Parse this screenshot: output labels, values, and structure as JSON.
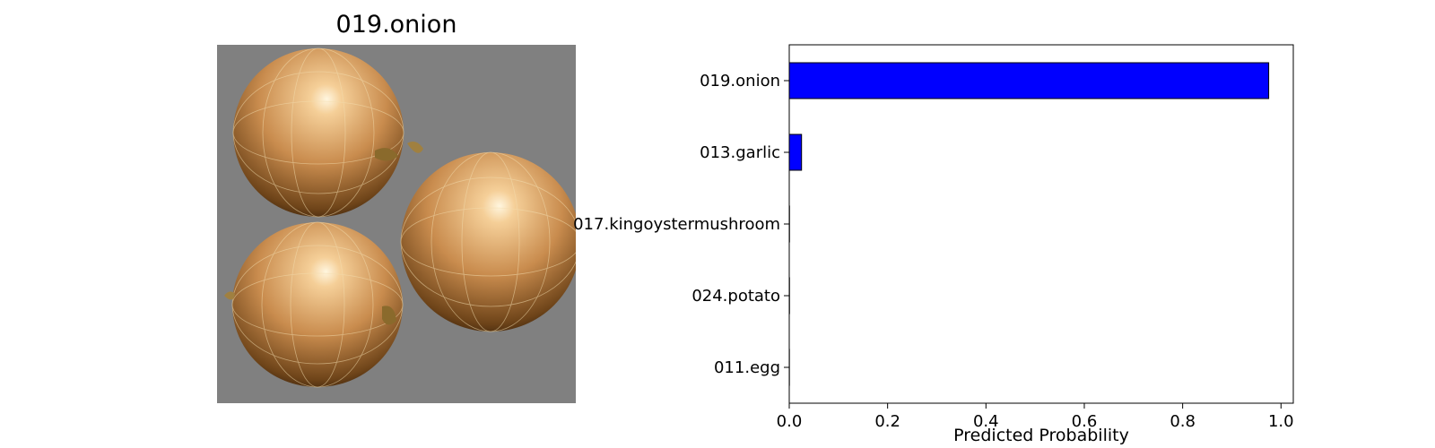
{
  "image_panel": {
    "title": "019.onion",
    "background_color": "#808080",
    "subject": "three onions"
  },
  "chart_data": {
    "type": "bar",
    "orientation": "horizontal",
    "categories": [
      "019.onion",
      "013.garlic",
      "017.kingoystermushroom",
      "024.potato",
      "011.egg"
    ],
    "values": [
      0.975,
      0.025,
      0.0005,
      0.0005,
      0.0003
    ],
    "xlabel": "Predicted Probability",
    "ylabel": "",
    "xlim": [
      0,
      1.025
    ],
    "xticks": [
      0.0,
      0.2,
      0.4,
      0.6,
      0.8,
      1.0
    ],
    "xtick_labels": [
      "0.0",
      "0.2",
      "0.4",
      "0.6",
      "0.8",
      "1.0"
    ],
    "bar_color": "#0000ff",
    "edge_color": "#000000",
    "grid": false
  }
}
